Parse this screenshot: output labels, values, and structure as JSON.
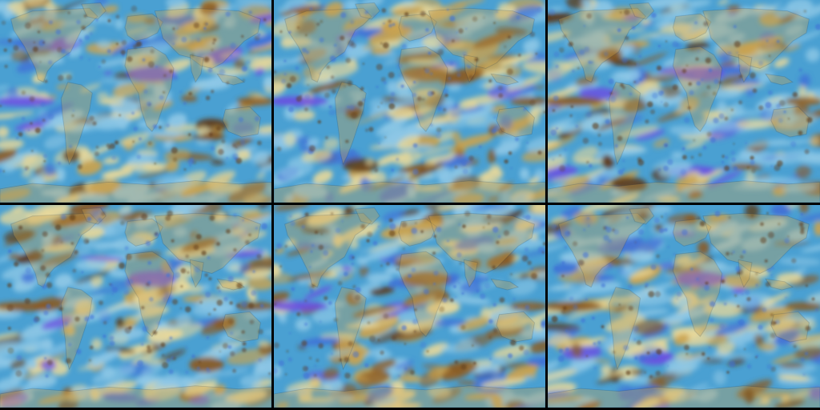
{
  "figure": {
    "description_visible_text": "",
    "layout": "2x3",
    "panels": [
      {
        "id": "p1",
        "variant": 0
      },
      {
        "id": "p2",
        "variant": 1
      },
      {
        "id": "p3",
        "variant": 2
      },
      {
        "id": "p4",
        "variant": 3
      },
      {
        "id": "p5",
        "variant": 4
      },
      {
        "id": "p6",
        "variant": 5
      }
    ],
    "colors": {
      "ocean_base": "#4aa0d2",
      "light_blue": "#8fc8e6",
      "pale_yellow": "#e8d89a",
      "tan": "#c9a24f",
      "brown": "#8a5a22",
      "dark_brown": "#5c3714",
      "blue": "#3f6fd6",
      "violet": "#6a4fe0",
      "land_outline": "#2a3a4a"
    }
  }
}
